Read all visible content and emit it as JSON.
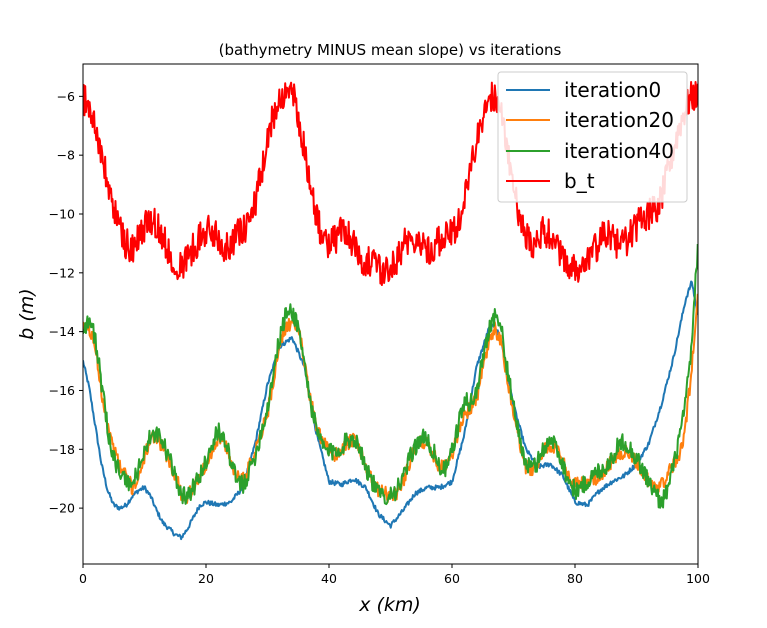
{
  "chart_data": {
    "type": "line",
    "title": "(bathymetry MINUS mean slope) vs iterations",
    "xlabel": "x (km)",
    "ylabel": "b (m)",
    "xlim": [
      0,
      100
    ],
    "ylim": [
      -21.9,
      -4.9
    ],
    "xticks": [
      0,
      20,
      40,
      60,
      80,
      100
    ],
    "yticks": [
      -20,
      -18,
      -16,
      -14,
      -12,
      -10,
      -8,
      -6
    ],
    "grid": false,
    "legend_position": "top-right",
    "series": [
      {
        "name": "iteration0",
        "color": "#1f77b4",
        "noise": 0.08,
        "x": [
          0,
          1,
          2,
          3,
          4,
          5,
          6,
          7,
          8,
          9,
          10,
          11,
          12,
          13,
          14,
          15,
          16,
          17,
          18,
          19,
          20,
          22,
          24,
          26,
          28,
          30,
          32,
          34,
          36,
          38,
          40,
          42,
          44,
          46,
          48,
          50,
          52,
          54,
          56,
          58,
          60,
          62,
          64,
          66,
          67,
          68,
          70,
          72,
          74,
          76,
          78,
          80,
          82,
          84,
          86,
          88,
          90,
          92,
          94,
          96,
          98,
          99,
          100
        ],
        "y": [
          -15,
          -15.9,
          -17.2,
          -18.5,
          -19.4,
          -19.9,
          -20.0,
          -19.9,
          -19.6,
          -19.4,
          -19.3,
          -19.6,
          -20.1,
          -20.5,
          -20.7,
          -20.9,
          -21.0,
          -20.7,
          -20.3,
          -19.9,
          -19.8,
          -19.9,
          -19.8,
          -19.3,
          -17.8,
          -15.8,
          -14.5,
          -14.2,
          -15.2,
          -17.5,
          -19.1,
          -19.2,
          -19.0,
          -19.3,
          -20.2,
          -20.6,
          -20.1,
          -19.5,
          -19.3,
          -19.3,
          -19.1,
          -17.5,
          -15.2,
          -13.9,
          -13.8,
          -14.3,
          -16.5,
          -18.0,
          -18.6,
          -18.5,
          -18.9,
          -19.8,
          -19.9,
          -19.4,
          -19.1,
          -18.9,
          -18.5,
          -17.8,
          -16.5,
          -14.9,
          -12.9,
          -12.3,
          -13.5
        ]
      },
      {
        "name": "iteration20",
        "color": "#ff7f0e",
        "noise": 0.25,
        "x": [
          0,
          1,
          2,
          3,
          4,
          5,
          6,
          7,
          8,
          9,
          10,
          11,
          12,
          13,
          14,
          15,
          16,
          17,
          18,
          19,
          20,
          21,
          22,
          23,
          24,
          25,
          26,
          27,
          28,
          29,
          30,
          31,
          32,
          33,
          34,
          35,
          36,
          37,
          38,
          39,
          40,
          41,
          42,
          43,
          44,
          45,
          46,
          47,
          48,
          49,
          50,
          51,
          52,
          53,
          54,
          55,
          56,
          57,
          58,
          59,
          60,
          61,
          62,
          63,
          64,
          65,
          66,
          67,
          68,
          69,
          70,
          71,
          72,
          73,
          74,
          75,
          76,
          77,
          78,
          79,
          80,
          81,
          82,
          83,
          84,
          85,
          86,
          87,
          88,
          89,
          90,
          91,
          92,
          93,
          94,
          95,
          96,
          97,
          98,
          99,
          100
        ],
        "y": [
          -13.9,
          -13.9,
          -14.5,
          -16.0,
          -17.2,
          -18.0,
          -18.6,
          -18.9,
          -19.3,
          -19.0,
          -18.2,
          -17.7,
          -17.6,
          -17.9,
          -18.4,
          -18.9,
          -19.5,
          -19.6,
          -19.3,
          -18.9,
          -18.6,
          -18.0,
          -17.6,
          -17.8,
          -18.4,
          -18.9,
          -19.0,
          -18.6,
          -18.0,
          -17.4,
          -16.8,
          -15.6,
          -14.5,
          -13.9,
          -13.6,
          -13.9,
          -15.0,
          -16.3,
          -17.3,
          -17.8,
          -18.0,
          -18.2,
          -18.0,
          -17.8,
          -17.7,
          -18.0,
          -18.6,
          -19.1,
          -19.4,
          -19.5,
          -19.6,
          -19.5,
          -19.1,
          -18.5,
          -18.0,
          -17.7,
          -17.8,
          -18.2,
          -18.6,
          -18.6,
          -18.2,
          -17.4,
          -16.8,
          -16.6,
          -16.3,
          -15.3,
          -14.4,
          -13.9,
          -14.4,
          -15.6,
          -16.8,
          -17.8,
          -18.6,
          -18.7,
          -18.4,
          -18.0,
          -17.9,
          -18.0,
          -18.4,
          -19.0,
          -19.2,
          -19.2,
          -19.1,
          -19.0,
          -18.9,
          -18.7,
          -18.4,
          -18.2,
          -18.1,
          -18.2,
          -18.4,
          -18.8,
          -19.1,
          -19.3,
          -19.2,
          -18.9,
          -18.5,
          -18.2,
          -17.2,
          -15.2,
          -12.6
        ]
      },
      {
        "name": "iteration40",
        "color": "#2ca02c",
        "noise": 0.32,
        "x": [
          0,
          1,
          2,
          3,
          4,
          5,
          6,
          7,
          8,
          9,
          10,
          11,
          12,
          13,
          14,
          15,
          16,
          17,
          18,
          19,
          20,
          21,
          22,
          23,
          24,
          25,
          26,
          27,
          28,
          29,
          30,
          31,
          32,
          33,
          34,
          35,
          36,
          37,
          38,
          39,
          40,
          41,
          42,
          43,
          44,
          45,
          46,
          47,
          48,
          49,
          50,
          51,
          52,
          53,
          54,
          55,
          56,
          57,
          58,
          59,
          60,
          61,
          62,
          63,
          64,
          65,
          66,
          67,
          68,
          69,
          70,
          71,
          72,
          73,
          74,
          75,
          76,
          77,
          78,
          79,
          80,
          81,
          82,
          83,
          84,
          85,
          86,
          87,
          88,
          89,
          90,
          91,
          92,
          93,
          94,
          95,
          96,
          97,
          98,
          99,
          100
        ],
        "y": [
          -13.9,
          -13.6,
          -14.2,
          -15.8,
          -17.3,
          -18.3,
          -18.8,
          -19.1,
          -19.2,
          -18.7,
          -18.0,
          -17.6,
          -17.5,
          -17.8,
          -18.3,
          -18.9,
          -19.5,
          -19.6,
          -19.3,
          -18.9,
          -18.4,
          -17.8,
          -17.4,
          -17.6,
          -18.4,
          -19.1,
          -19.2,
          -18.8,
          -18.2,
          -17.4,
          -16.6,
          -15.3,
          -14.2,
          -13.4,
          -13.3,
          -13.8,
          -15.1,
          -16.4,
          -17.4,
          -17.9,
          -18.1,
          -18.1,
          -17.9,
          -17.7,
          -17.6,
          -17.9,
          -18.6,
          -19.1,
          -19.5,
          -19.6,
          -19.5,
          -19.4,
          -19.0,
          -18.4,
          -17.9,
          -17.6,
          -17.7,
          -18.1,
          -18.6,
          -18.7,
          -18.1,
          -17.2,
          -16.4,
          -16.4,
          -16.1,
          -14.9,
          -13.9,
          -13.4,
          -13.9,
          -15.3,
          -16.6,
          -17.6,
          -18.5,
          -18.7,
          -18.4,
          -17.9,
          -17.7,
          -17.9,
          -18.5,
          -19.1,
          -19.4,
          -19.3,
          -19.1,
          -18.9,
          -18.7,
          -18.6,
          -18.3,
          -17.9,
          -17.7,
          -18.0,
          -18.3,
          -18.7,
          -19.1,
          -19.5,
          -19.8,
          -19.4,
          -18.6,
          -17.6,
          -16.4,
          -14.4,
          -11.0
        ]
      },
      {
        "name": "b_t",
        "color": "#ff0000",
        "noise": 0.55,
        "x": [
          0,
          1,
          2,
          3,
          4,
          5,
          6,
          7,
          8,
          9,
          10,
          11,
          12,
          13,
          14,
          15,
          16,
          17,
          18,
          19,
          20,
          21,
          22,
          23,
          24,
          25,
          26,
          27,
          28,
          29,
          30,
          31,
          32,
          33,
          34,
          35,
          36,
          37,
          38,
          39,
          40,
          41,
          42,
          43,
          44,
          45,
          46,
          47,
          48,
          49,
          50,
          51,
          52,
          53,
          54,
          55,
          56,
          57,
          58,
          59,
          60,
          61,
          62,
          63,
          64,
          65,
          66,
          67,
          68,
          69,
          70,
          71,
          72,
          73,
          74,
          75,
          76,
          77,
          78,
          79,
          80,
          81,
          82,
          83,
          84,
          85,
          86,
          87,
          88,
          89,
          90,
          91,
          92,
          93,
          94,
          95,
          96,
          97,
          98,
          99,
          100
        ],
        "y": [
          -6.0,
          -6.4,
          -7.0,
          -8.0,
          -9.0,
          -9.8,
          -10.5,
          -11.0,
          -11.2,
          -10.9,
          -10.4,
          -10.2,
          -10.4,
          -10.8,
          -11.3,
          -11.6,
          -11.8,
          -11.5,
          -11.1,
          -10.8,
          -10.6,
          -10.6,
          -10.8,
          -11.1,
          -11.0,
          -10.7,
          -10.6,
          -10.3,
          -9.6,
          -8.7,
          -7.6,
          -6.6,
          -6.0,
          -5.8,
          -5.9,
          -6.6,
          -7.8,
          -9.1,
          -10.2,
          -10.8,
          -11.0,
          -10.9,
          -10.5,
          -10.6,
          -11.0,
          -11.4,
          -11.6,
          -11.7,
          -11.9,
          -12.0,
          -11.8,
          -11.5,
          -11.1,
          -10.8,
          -10.8,
          -11.0,
          -11.2,
          -11.1,
          -10.9,
          -10.8,
          -10.7,
          -10.3,
          -9.5,
          -8.5,
          -7.6,
          -6.7,
          -6.1,
          -6.0,
          -6.6,
          -7.8,
          -9.1,
          -10.2,
          -10.8,
          -11.0,
          -10.8,
          -10.6,
          -10.7,
          -11.0,
          -11.4,
          -11.7,
          -11.9,
          -11.9,
          -11.7,
          -11.3,
          -10.9,
          -10.7,
          -10.8,
          -11.0,
          -11.0,
          -10.7,
          -10.4,
          -10.1,
          -10.0,
          -9.9,
          -9.5,
          -8.7,
          -7.8,
          -7.0,
          -6.4,
          -6.0,
          -6.0
        ]
      }
    ]
  }
}
